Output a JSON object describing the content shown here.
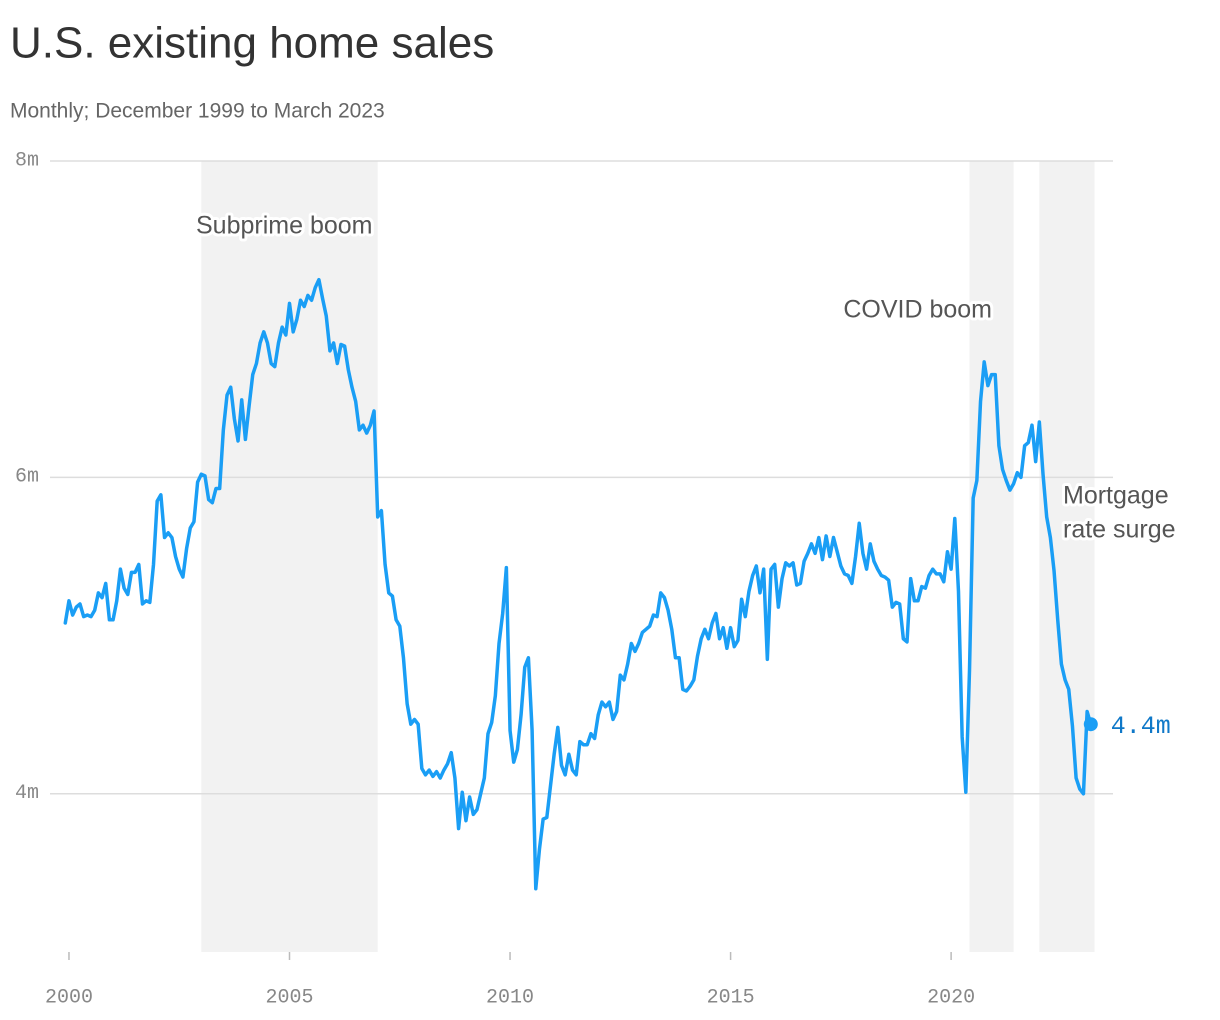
{
  "chart_data": {
    "type": "line",
    "title": "U.S. existing home sales",
    "subtitle": "Monthly; December 1999 to March 2023",
    "xlim": [
      1999.57,
      2023.67
    ],
    "xticks": [
      2000,
      2005,
      2010,
      2015,
      2020
    ],
    "ylim": [
      3,
      8
    ],
    "yticks": [
      {
        "value": 4,
        "label": "4m"
      },
      {
        "value": 6,
        "label": "6m"
      },
      {
        "value": 8,
        "label": "8m"
      }
    ],
    "grid": true,
    "color": "#1a9ef5",
    "shade_color": "#f2f2f2",
    "spans": [
      {
        "label_lines": [
          "Subprime boom"
        ],
        "start": "2003-01",
        "end": "2007-01"
      },
      {
        "label_lines": [
          "COVID boom"
        ],
        "start": "2020-06",
        "end": "2021-06"
      },
      {
        "label_lines": [
          "Mortgage",
          "rate surge"
        ],
        "start": "2022-01",
        "end": "2023-04"
      }
    ],
    "end_label": "4.4m",
    "x": [
      "1999-12",
      "2000-01",
      "2000-02",
      "2000-03",
      "2000-04",
      "2000-05",
      "2000-06",
      "2000-07",
      "2000-08",
      "2000-09",
      "2000-10",
      "2000-11",
      "2000-12",
      "2001-01",
      "2001-02",
      "2001-03",
      "2001-04",
      "2001-05",
      "2001-06",
      "2001-07",
      "2001-08",
      "2001-09",
      "2001-10",
      "2001-11",
      "2001-12",
      "2002-01",
      "2002-02",
      "2002-03",
      "2002-04",
      "2002-05",
      "2002-06",
      "2002-07",
      "2002-08",
      "2002-09",
      "2002-10",
      "2002-11",
      "2002-12",
      "2003-01",
      "2003-02",
      "2003-03",
      "2003-04",
      "2003-05",
      "2003-06",
      "2003-07",
      "2003-08",
      "2003-09",
      "2003-10",
      "2003-11",
      "2003-12",
      "2004-01",
      "2004-02",
      "2004-03",
      "2004-04",
      "2004-05",
      "2004-06",
      "2004-07",
      "2004-08",
      "2004-09",
      "2004-10",
      "2004-11",
      "2004-12",
      "2005-01",
      "2005-02",
      "2005-03",
      "2005-04",
      "2005-05",
      "2005-06",
      "2005-07",
      "2005-08",
      "2005-09",
      "2005-10",
      "2005-11",
      "2005-12",
      "2006-01",
      "2006-02",
      "2006-03",
      "2006-04",
      "2006-05",
      "2006-06",
      "2006-07",
      "2006-08",
      "2006-09",
      "2006-10",
      "2006-11",
      "2006-12",
      "2007-01",
      "2007-02",
      "2007-03",
      "2007-04",
      "2007-05",
      "2007-06",
      "2007-07",
      "2007-08",
      "2007-09",
      "2007-10",
      "2007-11",
      "2007-12",
      "2008-01",
      "2008-02",
      "2008-03",
      "2008-04",
      "2008-05",
      "2008-06",
      "2008-07",
      "2008-08",
      "2008-09",
      "2008-10",
      "2008-11",
      "2008-12",
      "2009-01",
      "2009-02",
      "2009-03",
      "2009-04",
      "2009-05",
      "2009-06",
      "2009-07",
      "2009-08",
      "2009-09",
      "2009-10",
      "2009-11",
      "2009-12",
      "2010-01",
      "2010-02",
      "2010-03",
      "2010-04",
      "2010-05",
      "2010-06",
      "2010-07",
      "2010-08",
      "2010-09",
      "2010-10",
      "2010-11",
      "2010-12",
      "2011-01",
      "2011-02",
      "2011-03",
      "2011-04",
      "2011-05",
      "2011-06",
      "2011-07",
      "2011-08",
      "2011-09",
      "2011-10",
      "2011-11",
      "2011-12",
      "2012-01",
      "2012-02",
      "2012-03",
      "2012-04",
      "2012-05",
      "2012-06",
      "2012-07",
      "2012-08",
      "2012-09",
      "2012-10",
      "2012-11",
      "2012-12",
      "2013-01",
      "2013-02",
      "2013-03",
      "2013-04",
      "2013-05",
      "2013-06",
      "2013-07",
      "2013-08",
      "2013-09",
      "2013-10",
      "2013-11",
      "2013-12",
      "2014-01",
      "2014-02",
      "2014-03",
      "2014-04",
      "2014-05",
      "2014-06",
      "2014-07",
      "2014-08",
      "2014-09",
      "2014-10",
      "2014-11",
      "2014-12",
      "2015-01",
      "2015-02",
      "2015-03",
      "2015-04",
      "2015-05",
      "2015-06",
      "2015-07",
      "2015-08",
      "2015-09",
      "2015-10",
      "2015-11",
      "2015-12",
      "2016-01",
      "2016-02",
      "2016-03",
      "2016-04",
      "2016-05",
      "2016-06",
      "2016-07",
      "2016-08",
      "2016-09",
      "2016-10",
      "2016-11",
      "2016-12",
      "2017-01",
      "2017-02",
      "2017-03",
      "2017-04",
      "2017-05",
      "2017-06",
      "2017-07",
      "2017-08",
      "2017-09",
      "2017-10",
      "2017-11",
      "2017-12",
      "2018-01",
      "2018-02",
      "2018-03",
      "2018-04",
      "2018-05",
      "2018-06",
      "2018-07",
      "2018-08",
      "2018-09",
      "2018-10",
      "2018-11",
      "2018-12",
      "2019-01",
      "2019-02",
      "2019-03",
      "2019-04",
      "2019-05",
      "2019-06",
      "2019-07",
      "2019-08",
      "2019-09",
      "2019-10",
      "2019-11",
      "2019-12",
      "2020-01",
      "2020-02",
      "2020-03",
      "2020-04",
      "2020-05",
      "2020-06",
      "2020-07",
      "2020-08",
      "2020-09",
      "2020-10",
      "2020-11",
      "2020-12",
      "2021-01",
      "2021-02",
      "2021-03",
      "2021-04",
      "2021-05",
      "2021-06",
      "2021-07",
      "2021-08",
      "2021-09",
      "2021-10",
      "2021-11",
      "2021-12",
      "2022-01",
      "2022-02",
      "2022-03",
      "2022-04",
      "2022-05",
      "2022-06",
      "2022-07",
      "2022-08",
      "2022-09",
      "2022-10",
      "2022-11",
      "2022-12",
      "2023-01",
      "2023-02",
      "2023-03"
    ],
    "values": [
      5.08,
      5.22,
      5.13,
      5.18,
      5.2,
      5.12,
      5.13,
      5.12,
      5.16,
      5.27,
      5.24,
      5.33,
      5.1,
      5.1,
      5.22,
      5.42,
      5.3,
      5.26,
      5.4,
      5.4,
      5.45,
      5.2,
      5.22,
      5.21,
      5.45,
      5.85,
      5.89,
      5.62,
      5.65,
      5.62,
      5.5,
      5.42,
      5.37,
      5.55,
      5.68,
      5.72,
      5.97,
      6.02,
      6.01,
      5.86,
      5.84,
      5.93,
      5.93,
      6.3,
      6.52,
      6.57,
      6.37,
      6.23,
      6.49,
      6.24,
      6.45,
      6.65,
      6.72,
      6.85,
      6.92,
      6.85,
      6.72,
      6.7,
      6.85,
      6.95,
      6.9,
      7.1,
      6.92,
      7.0,
      7.12,
      7.08,
      7.15,
      7.12,
      7.2,
      7.25,
      7.13,
      7.02,
      6.8,
      6.85,
      6.72,
      6.84,
      6.83,
      6.68,
      6.57,
      6.48,
      6.3,
      6.33,
      6.28,
      6.33,
      6.42,
      5.75,
      5.79,
      5.45,
      5.27,
      5.25,
      5.1,
      5.06,
      4.86,
      4.57,
      4.44,
      4.47,
      4.44,
      4.16,
      4.12,
      4.15,
      4.11,
      4.14,
      4.1,
      4.15,
      4.19,
      4.26,
      4.1,
      3.78,
      4.01,
      3.83,
      3.98,
      3.87,
      3.9,
      4.0,
      4.1,
      4.38,
      4.45,
      4.62,
      4.95,
      5.14,
      5.43,
      4.4,
      4.2,
      4.28,
      4.5,
      4.8,
      4.86,
      4.4,
      3.4,
      3.65,
      3.84,
      3.85,
      4.05,
      4.25,
      4.42,
      4.18,
      4.12,
      4.25,
      4.15,
      4.12,
      4.33,
      4.31,
      4.31,
      4.38,
      4.35,
      4.5,
      4.58,
      4.55,
      4.58,
      4.47,
      4.52,
      4.75,
      4.72,
      4.82,
      4.95,
      4.9,
      4.95,
      5.02,
      5.04,
      5.06,
      5.13,
      5.12,
      5.27,
      5.24,
      5.16,
      5.04,
      4.86,
      4.86,
      4.66,
      4.65,
      4.68,
      4.72,
      4.87,
      4.98,
      5.04,
      4.98,
      5.08,
      5.14,
      4.98,
      5.05,
      4.92,
      5.05,
      4.93,
      4.97,
      5.23,
      5.12,
      5.28,
      5.38,
      5.44,
      5.27,
      5.42,
      4.85,
      5.42,
      5.45,
      5.18,
      5.36,
      5.46,
      5.44,
      5.46,
      5.32,
      5.33,
      5.47,
      5.52,
      5.58,
      5.52,
      5.62,
      5.48,
      5.63,
      5.5,
      5.62,
      5.53,
      5.44,
      5.39,
      5.38,
      5.33,
      5.5,
      5.71,
      5.52,
      5.42,
      5.58,
      5.47,
      5.42,
      5.38,
      5.37,
      5.35,
      5.18,
      5.21,
      5.2,
      4.98,
      4.96,
      5.36,
      5.22,
      5.22,
      5.31,
      5.3,
      5.38,
      5.42,
      5.39,
      5.39,
      5.34,
      5.53,
      5.42,
      5.74,
      5.28,
      4.36,
      4.01,
      4.78,
      5.87,
      5.98,
      6.48,
      6.73,
      6.58,
      6.65,
      6.65,
      6.2,
      6.05,
      5.98,
      5.92,
      5.96,
      6.03,
      6.0,
      6.2,
      6.22,
      6.33,
      6.1,
      6.35,
      6.02,
      5.75,
      5.62,
      5.41,
      5.1,
      4.82,
      4.72,
      4.66,
      4.43,
      4.1,
      4.03,
      4.0,
      4.52,
      4.44
    ]
  }
}
